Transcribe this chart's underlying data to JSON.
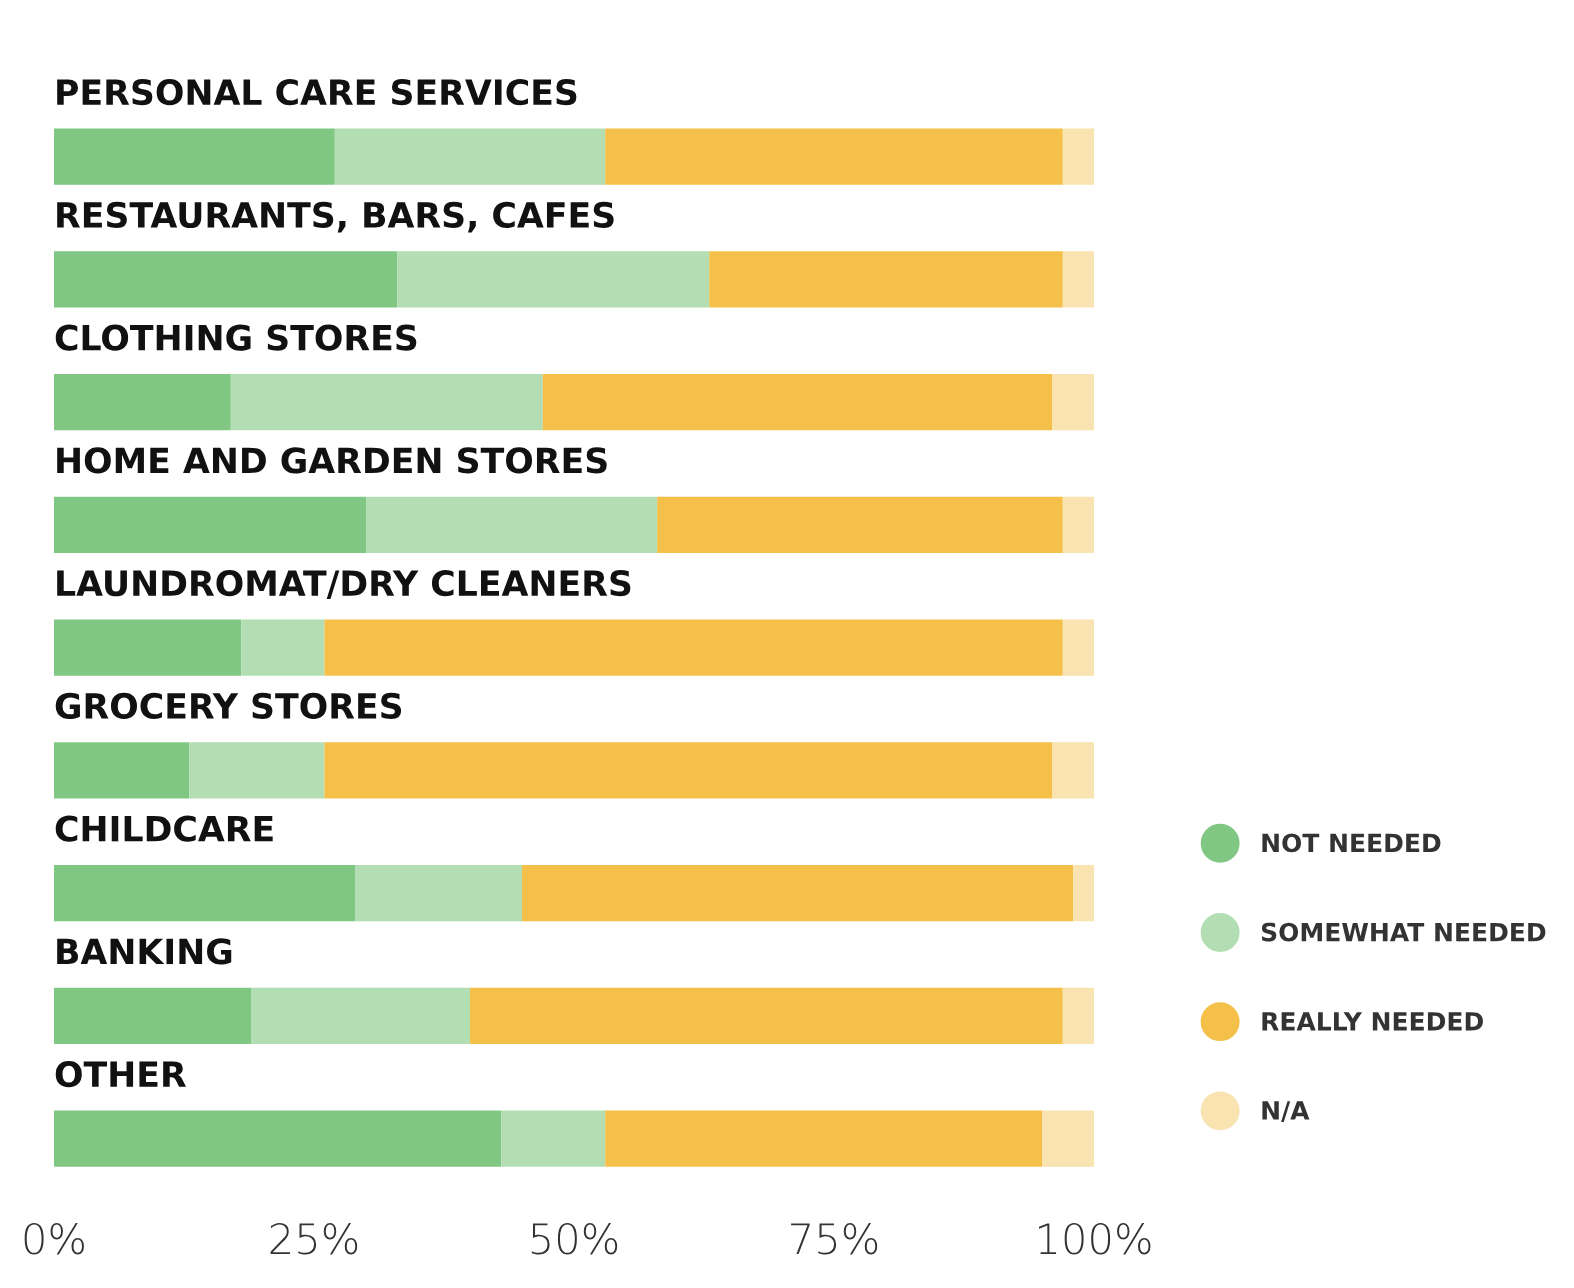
{
  "chart_data": {
    "type": "bar",
    "orientation": "horizontal",
    "stacked": true,
    "categories": [
      "PERSONAL CARE SERVICES",
      "RESTAURANTS, BARS, CAFES",
      "CLOTHING STORES",
      "HOME AND GARDEN STORES",
      "LAUNDROMAT/DRY CLEANERS",
      "GROCERY STORES",
      "CHILDCARE",
      "BANKING",
      "OTHER"
    ],
    "series": [
      {
        "name": "NOT NEEDED",
        "color": "#81c784",
        "values": [
          27,
          33,
          17,
          30,
          18,
          13,
          29,
          19,
          43
        ]
      },
      {
        "name": "SOMEWHAT NEEDED",
        "color": "#b3deb4",
        "values": [
          26,
          30,
          30,
          28,
          8,
          13,
          16,
          21,
          10
        ]
      },
      {
        "name": "REALLY NEEDED",
        "color": "#f4c04a",
        "values": [
          44,
          34,
          49,
          39,
          71,
          70,
          53,
          57,
          42
        ]
      },
      {
        "name": "N/A",
        "color": "#f9e3b0",
        "values": [
          3,
          3,
          4,
          3,
          3,
          4,
          2,
          3,
          5
        ]
      }
    ],
    "xlim": [
      0,
      100
    ],
    "xticks": [
      {
        "value": 0,
        "label": "0%"
      },
      {
        "value": 25,
        "label": "25%"
      },
      {
        "value": 50,
        "label": "50%"
      },
      {
        "value": 75,
        "label": "75%"
      },
      {
        "value": 100,
        "label": "100%"
      }
    ],
    "legend": "right",
    "grid": false
  }
}
